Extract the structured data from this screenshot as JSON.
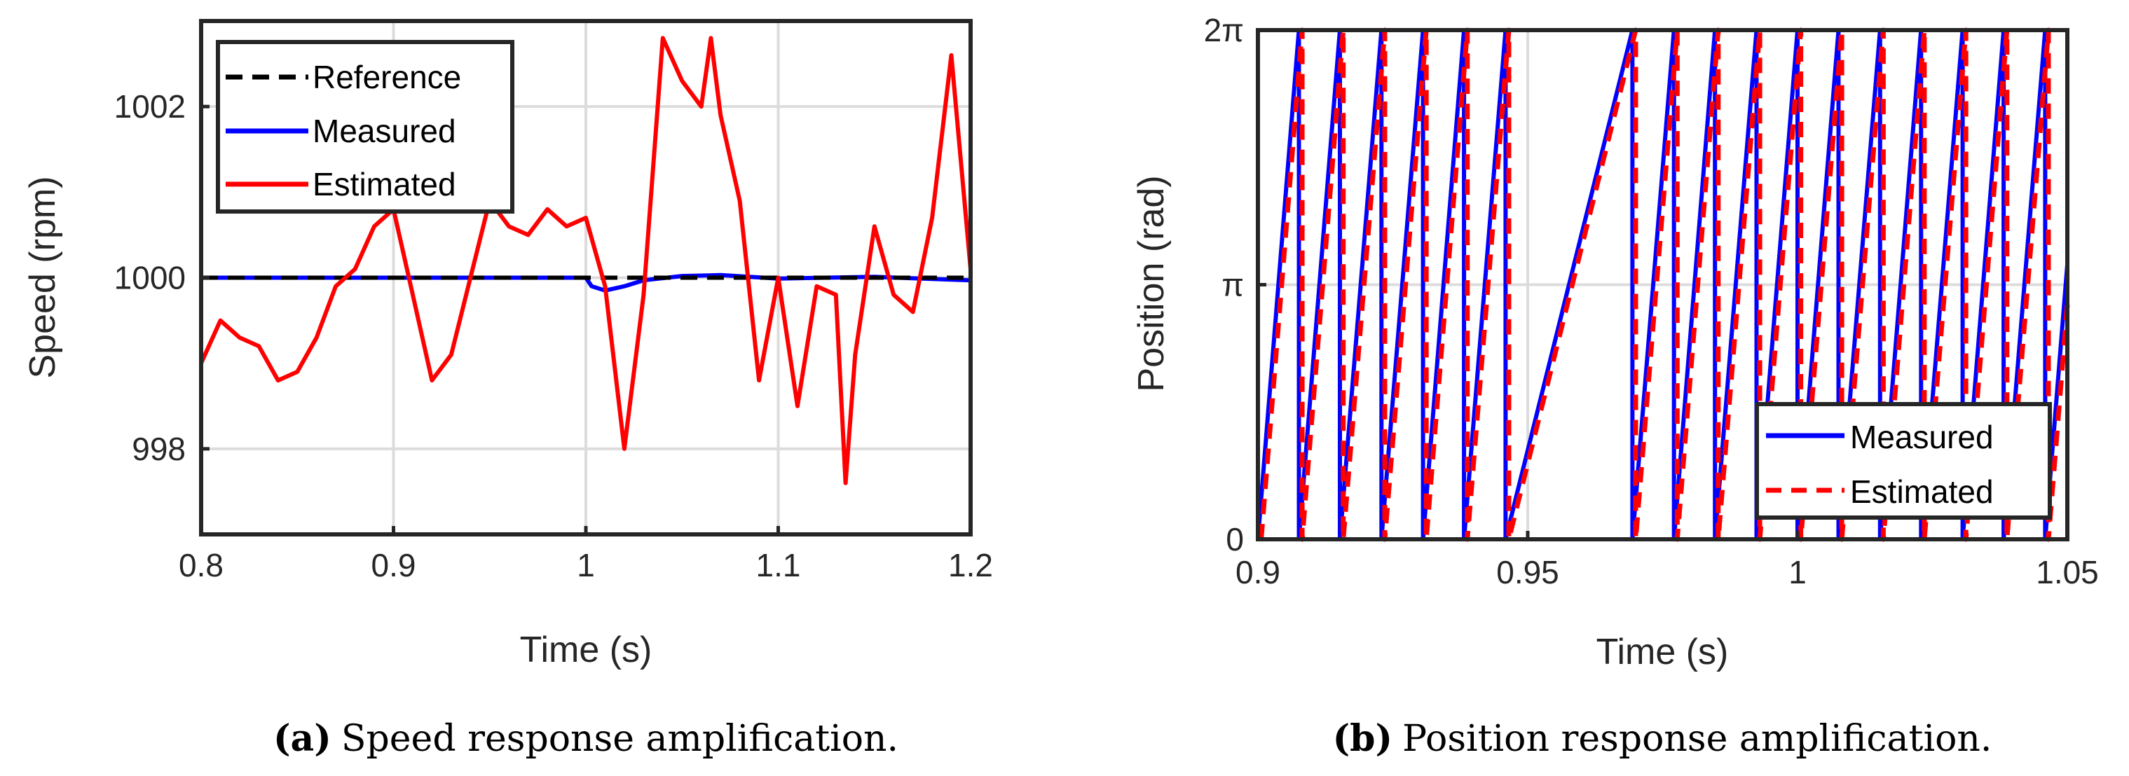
{
  "figure": {
    "caption_a_tag": "(a)",
    "caption_a_text": "Speed response amplification.",
    "caption_b_tag": "(b)",
    "caption_b_text": "Position response amplification."
  },
  "chart_data": [
    {
      "id": "speed",
      "type": "line",
      "title": "",
      "xlabel": "Time (s)",
      "ylabel": "Speed (rpm)",
      "xlim": [
        0.8,
        1.2
      ],
      "ylim": [
        997,
        1003
      ],
      "xticks": [
        0.8,
        0.9,
        1.0,
        1.1,
        1.2
      ],
      "xtick_labels": [
        "0.8",
        "0.9",
        "1",
        "1.1",
        "1.2"
      ],
      "yticks": [
        998,
        1000,
        1002
      ],
      "ytick_labels": [
        "998",
        "1000",
        "1002"
      ],
      "grid": true,
      "legend": {
        "placement": "top-left",
        "entries": [
          "Reference",
          "Measured",
          "Estimated"
        ]
      },
      "series": [
        {
          "name": "Reference",
          "style": "dashed",
          "color": "#000000",
          "points": [
            [
              0.8,
              1000.0
            ],
            [
              1.2,
              1000.0
            ]
          ]
        },
        {
          "name": "Measured",
          "style": "solid",
          "color": "#0000ff",
          "points": [
            [
              0.8,
              1000.0
            ],
            [
              1.0,
              1000.0
            ],
            [
              1.003,
              999.9
            ],
            [
              1.01,
              999.85
            ],
            [
              1.02,
              999.9
            ],
            [
              1.03,
              999.97
            ],
            [
              1.05,
              1000.02
            ],
            [
              1.07,
              1000.03
            ],
            [
              1.1,
              999.99
            ],
            [
              1.15,
              1000.01
            ],
            [
              1.2,
              999.97
            ]
          ]
        },
        {
          "name": "Estimated",
          "style": "solid",
          "color": "#ff0000",
          "points": [
            [
              0.8,
              999.0
            ],
            [
              0.81,
              999.5
            ],
            [
              0.82,
              999.3
            ],
            [
              0.83,
              999.2
            ],
            [
              0.84,
              998.8
            ],
            [
              0.85,
              998.9
            ],
            [
              0.86,
              999.3
            ],
            [
              0.87,
              999.9
            ],
            [
              0.88,
              1000.1
            ],
            [
              0.89,
              1000.6
            ],
            [
              0.9,
              1000.8
            ],
            [
              0.91,
              999.8
            ],
            [
              0.92,
              998.8
            ],
            [
              0.93,
              999.1
            ],
            [
              0.94,
              1000.0
            ],
            [
              0.95,
              1000.9
            ],
            [
              0.96,
              1000.6
            ],
            [
              0.97,
              1000.5
            ],
            [
              0.98,
              1000.8
            ],
            [
              0.99,
              1000.6
            ],
            [
              1.0,
              1000.7
            ],
            [
              1.01,
              999.9
            ],
            [
              1.02,
              998.0
            ],
            [
              1.03,
              999.8
            ],
            [
              1.04,
              1002.8
            ],
            [
              1.05,
              1002.3
            ],
            [
              1.06,
              1002.0
            ],
            [
              1.065,
              1002.8
            ],
            [
              1.07,
              1001.9
            ],
            [
              1.08,
              1000.9
            ],
            [
              1.09,
              998.8
            ],
            [
              1.1,
              1000.0
            ],
            [
              1.11,
              998.5
            ],
            [
              1.12,
              999.9
            ],
            [
              1.13,
              999.8
            ],
            [
              1.135,
              997.6
            ],
            [
              1.14,
              999.1
            ],
            [
              1.15,
              1000.6
            ],
            [
              1.16,
              999.8
            ],
            [
              1.17,
              999.6
            ],
            [
              1.18,
              1000.7
            ],
            [
              1.19,
              1002.6
            ],
            [
              1.2,
              1000.1
            ]
          ]
        }
      ]
    },
    {
      "id": "position",
      "type": "line",
      "title": "",
      "xlabel": "Time (s)",
      "ylabel": "Position (rad)",
      "xlim": [
        0.9,
        1.05
      ],
      "ylim": [
        0,
        6.2832
      ],
      "xticks": [
        0.9,
        0.95,
        1.0,
        1.05
      ],
      "xtick_labels": [
        "0.9",
        "0.95",
        "1",
        "1.05"
      ],
      "yticks": [
        0,
        3.1416,
        6.2832
      ],
      "ytick_labels": [
        "0",
        "π",
        "2π"
      ],
      "grid": true,
      "legend": {
        "placement": "bottom-right",
        "entries": [
          "Measured",
          "Estimated"
        ]
      },
      "waveform": "sawtooth",
      "wrap_times_s": [
        0.9076,
        0.9152,
        0.9229,
        0.9306,
        0.9382,
        0.9459,
        0.9694,
        0.9771,
        0.9847,
        0.9924,
        1.0,
        1.0076,
        1.0153,
        1.0229,
        1.0306,
        1.0382,
        1.0459
      ],
      "series": [
        {
          "name": "Measured",
          "style": "solid",
          "color": "#0000ff",
          "time_offset_s": 0.0
        },
        {
          "name": "Estimated",
          "style": "dashed",
          "color": "#ff0000",
          "time_offset_s": 0.0006
        }
      ]
    }
  ]
}
